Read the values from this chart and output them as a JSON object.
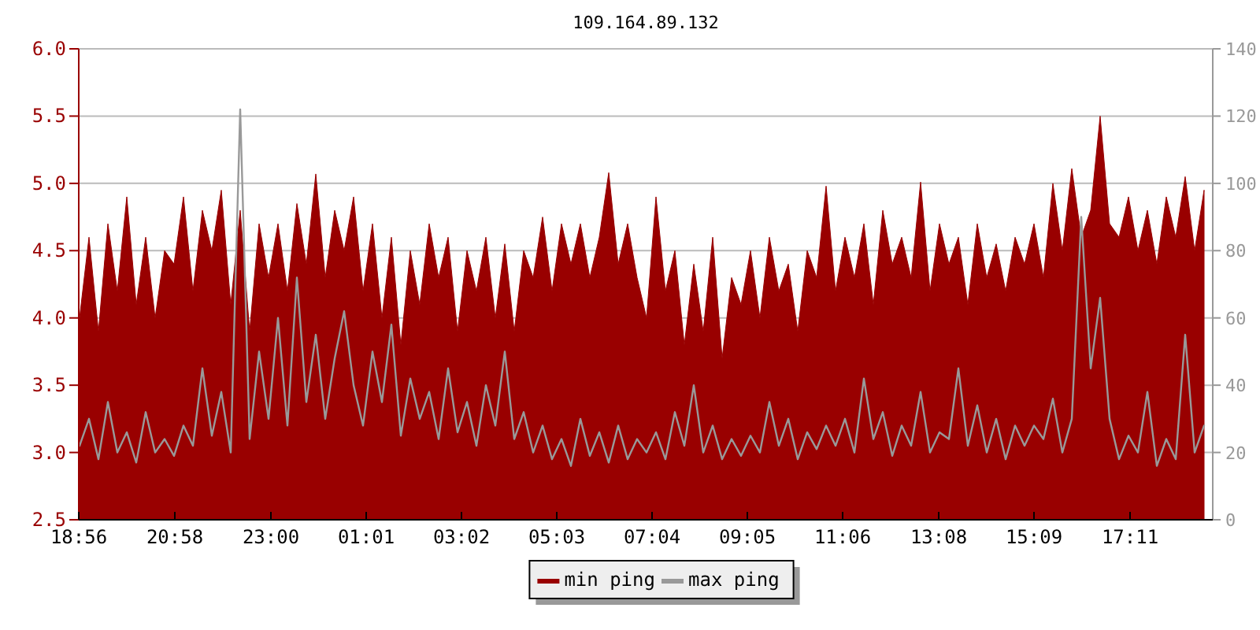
{
  "chart_data": {
    "type": "area",
    "title": "109.164.89.132",
    "x": [
      "--01-01T18:57",
      "--01-01T19:09",
      "--01-01T19:21",
      "--01-01T19:33",
      "--01-01T19:45",
      "--01-01T19:57",
      "--01-01T20:09",
      "--01-01T20:21",
      "--01-01T20:33",
      "--01-01T20:45",
      "--01-01T20:57",
      "--01-01T21:09",
      "--01-01T21:21",
      "--01-01T21:33",
      "--01-01T21:45",
      "--01-01T21:57",
      "--01-01T22:09",
      "--01-01T22:21",
      "--01-01T22:33",
      "--01-01T22:45",
      "--01-01T22:57",
      "--01-01T23:09",
      "--01-01T23:21",
      "--01-01T23:33",
      "--01-01T23:45",
      "--01-01T23:57",
      "--01-02T00:09",
      "--01-02T00:21",
      "--01-02T00:33",
      "--01-02T00:45",
      "--01-02T00:57",
      "--01-02T01:09",
      "--01-02T01:21",
      "--01-02T01:33",
      "--01-02T01:45",
      "--01-02T01:57",
      "--01-02T02:09",
      "--01-02T02:21",
      "--01-02T02:33",
      "--01-02T02:45",
      "--01-02T02:57",
      "--01-02T03:09",
      "--01-02T03:21",
      "--01-02T03:33",
      "--01-02T03:45",
      "--01-02T03:57",
      "--01-02T04:09",
      "--01-02T04:21",
      "--01-02T04:33",
      "--01-02T04:45",
      "--01-02T04:57",
      "--01-02T05:09",
      "--01-02T05:21",
      "--01-02T05:33",
      "--01-02T05:45",
      "--01-02T05:57",
      "--01-02T06:09",
      "--01-02T06:21",
      "--01-02T06:33",
      "--01-02T06:45",
      "--01-02T06:57",
      "--01-02T07:09",
      "--01-02T07:21",
      "--01-02T07:33",
      "--01-02T07:45",
      "--01-02T07:57",
      "--01-02T08:09",
      "--01-02T08:21",
      "--01-02T08:33",
      "--01-02T08:45",
      "--01-02T08:57",
      "--01-02T09:09",
      "--01-02T09:21",
      "--01-02T09:33",
      "--01-02T09:45",
      "--01-02T09:57",
      "--01-02T10:09",
      "--01-02T10:21",
      "--01-02T10:33",
      "--01-02T10:45",
      "--01-02T10:57",
      "--01-02T11:09",
      "--01-02T11:21",
      "--01-02T11:33",
      "--01-02T11:45",
      "--01-02T11:57",
      "--01-02T12:09",
      "--01-02T12:21",
      "--01-02T12:33",
      "--01-02T12:45",
      "--01-02T12:57",
      "--01-02T13:09",
      "--01-02T13:21",
      "--01-02T13:33",
      "--01-02T13:45",
      "--01-02T13:57",
      "--01-02T14:09",
      "--01-02T14:21",
      "--01-02T14:33",
      "--01-02T14:45",
      "--01-02T14:57",
      "--01-02T15:09",
      "--01-02T15:21",
      "--01-02T15:33",
      "--01-02T15:45",
      "--01-02T15:57",
      "--01-02T16:09",
      "--01-02T16:21",
      "--01-02T16:33",
      "--01-02T16:45",
      "--01-02T16:57",
      "--01-02T17:09",
      "--01-02T17:21",
      "--01-02T17:33",
      "--01-02T17:45",
      "--01-02T17:57",
      "--01-02T18:09",
      "--01-02T18:21",
      "--01-02T18:33",
      "--01-02T18:45"
    ],
    "xlim": [
      "--01-01T18:56",
      "--01-02T18:56"
    ],
    "xticks": [
      {
        "value": "--01-01T18:56",
        "label": "18:56"
      },
      {
        "value": "--01-01T20:58",
        "label": "20:58"
      },
      {
        "value": "--01-01T23:00",
        "label": "23:00"
      },
      {
        "value": "--01-02T01:01",
        "label": "01:01"
      },
      {
        "value": "--01-02T03:02",
        "label": "03:02"
      },
      {
        "value": "--01-02T05:03",
        "label": "05:03"
      },
      {
        "value": "--01-02T07:04",
        "label": "07:04"
      },
      {
        "value": "--01-02T09:05",
        "label": "09:05"
      },
      {
        "value": "--01-02T11:06",
        "label": "11:06"
      },
      {
        "value": "--01-02T13:08",
        "label": "13:08"
      },
      {
        "value": "--01-02T15:09",
        "label": "15:09"
      },
      {
        "value": "--01-02T17:11",
        "label": "17:11"
      }
    ],
    "ylim": [
      2.5,
      6.0
    ],
    "yticks": [
      2.5,
      {
        "value": 3,
        "label": "3.0"
      },
      3.5,
      {
        "value": 4,
        "label": "4.0"
      },
      4.5,
      {
        "value": 5,
        "label": "5.0"
      },
      5.5,
      {
        "value": 6,
        "label": "6.0"
      }
    ],
    "y2lim": [
      0,
      140
    ],
    "y2ticks": [
      0,
      20,
      40,
      60,
      80,
      100,
      120,
      140
    ],
    "grid": "y",
    "legend": "bottom",
    "series": [
      {
        "name": "min ping",
        "color": "#990000",
        "values": [
          4.0,
          4.6,
          3.9,
          4.7,
          4.2,
          4.9,
          4.1,
          4.6,
          4.0,
          4.5,
          4.4,
          4.9,
          4.2,
          4.8,
          4.5,
          4.95,
          4.1,
          4.8,
          3.9,
          4.7,
          4.3,
          4.7,
          4.2,
          4.85,
          4.4,
          5.07,
          4.3,
          4.8,
          4.5,
          4.9,
          4.2,
          4.7,
          4.0,
          4.6,
          3.8,
          4.5,
          4.1,
          4.7,
          4.3,
          4.6,
          3.9,
          4.5,
          4.2,
          4.6,
          4.0,
          4.55,
          3.9,
          4.5,
          4.3,
          4.75,
          4.2,
          4.7,
          4.4,
          4.7,
          4.3,
          4.6,
          5.08,
          4.4,
          4.7,
          4.3,
          4.0,
          4.9,
          4.2,
          4.5,
          3.8,
          4.4,
          3.9,
          4.6,
          3.7,
          4.3,
          4.1,
          4.5,
          4.0,
          4.6,
          4.2,
          4.4,
          3.9,
          4.5,
          4.3,
          4.98,
          4.2,
          4.6,
          4.3,
          4.7,
          4.1,
          4.8,
          4.4,
          4.6,
          4.3,
          5.01,
          4.2,
          4.7,
          4.4,
          4.6,
          4.1,
          4.7,
          4.3,
          4.55,
          4.2,
          4.6,
          4.4,
          4.7,
          4.3,
          5.0,
          4.5,
          5.11,
          4.6,
          4.8,
          5.5,
          4.7,
          4.6,
          4.9,
          4.5,
          4.8,
          4.4,
          4.9,
          4.6,
          5.05,
          4.5,
          4.95
        ]
      },
      {
        "name": "max ping",
        "type": "line",
        "axis": "y2",
        "color": "#999999",
        "values": [
          22,
          30,
          18,
          35,
          20,
          26,
          17,
          32,
          20,
          24,
          19,
          28,
          22,
          45,
          25,
          38,
          20,
          122,
          24,
          50,
          30,
          60,
          28,
          72,
          35,
          55,
          30,
          48,
          62,
          40,
          28,
          50,
          35,
          58,
          25,
          42,
          30,
          38,
          24,
          45,
          26,
          35,
          22,
          40,
          28,
          50,
          24,
          32,
          20,
          28,
          18,
          24,
          16,
          30,
          19,
          26,
          17,
          28,
          18,
          24,
          20,
          26,
          18,
          32,
          22,
          40,
          20,
          28,
          18,
          24,
          19,
          25,
          20,
          35,
          22,
          30,
          18,
          26,
          21,
          28,
          22,
          30,
          20,
          42,
          24,
          32,
          19,
          28,
          22,
          38,
          20,
          26,
          24,
          45,
          22,
          34,
          20,
          30,
          18,
          28,
          22,
          28,
          24,
          36,
          20,
          30,
          90,
          45,
          66,
          30,
          18,
          25,
          20,
          38,
          16,
          24,
          18,
          55,
          20,
          28
        ]
      }
    ]
  }
}
